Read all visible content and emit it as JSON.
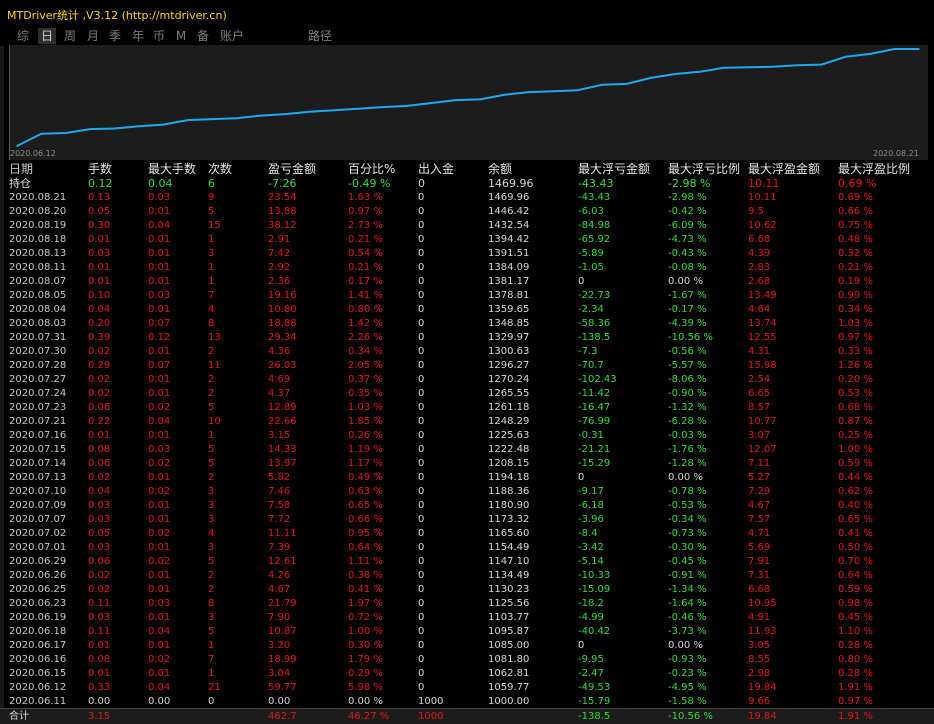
{
  "window_title": "MTDriver统计 ,V3.12 (http://mtdriver.cn)",
  "tabs": [
    "综",
    "日",
    "周",
    "月",
    "季",
    "年",
    "币",
    "M",
    "备",
    "账户",
    "路径"
  ],
  "active_tab": "日",
  "chart_data": {
    "type": "line",
    "title": "",
    "xlabel": "",
    "ylabel": "",
    "x_start_label": "2020.06.12",
    "x_end_label": "2020.08.21",
    "x": [
      "2020.06.11",
      "2020.06.12",
      "2020.06.15",
      "2020.06.16",
      "2020.06.17",
      "2020.06.18",
      "2020.06.19",
      "2020.06.23",
      "2020.06.25",
      "2020.06.26",
      "2020.06.29",
      "2020.07.01",
      "2020.07.02",
      "2020.07.07",
      "2020.07.09",
      "2020.07.10",
      "2020.07.13",
      "2020.07.14",
      "2020.07.15",
      "2020.07.16",
      "2020.07.21",
      "2020.07.23",
      "2020.07.24",
      "2020.07.27",
      "2020.07.28",
      "2020.07.30",
      "2020.07.31",
      "2020.08.03",
      "2020.08.04",
      "2020.08.05",
      "2020.08.07",
      "2020.08.11",
      "2020.08.13",
      "2020.08.18",
      "2020.08.19",
      "2020.08.20",
      "2020.08.21",
      "持仓"
    ],
    "series": [
      {
        "values": [
          1000.0,
          1059.77,
          1062.81,
          1081.8,
          1085.0,
          1095.87,
          1103.77,
          1125.56,
          1130.23,
          1134.49,
          1147.1,
          1154.49,
          1165.6,
          1173.32,
          1180.9,
          1188.36,
          1194.18,
          1208.15,
          1222.48,
          1225.63,
          1248.29,
          1261.18,
          1265.55,
          1270.24,
          1296.27,
          1300.63,
          1329.97,
          1348.85,
          1359.65,
          1378.81,
          1381.17,
          1384.09,
          1391.51,
          1394.42,
          1432.54,
          1446.42,
          1469.96,
          1469.96
        ]
      }
    ],
    "color": "#1eaaf0",
    "grid": false
  },
  "columns": [
    "日期",
    "手数",
    "最大手数",
    "次数",
    "盈亏金额",
    "百分比%",
    "出入金",
    "余额",
    "最大浮亏金额",
    "最大浮亏比例",
    "最大浮盈金额",
    "最大浮盈比例"
  ],
  "holding": [
    "持仓",
    "0.12",
    "0.04",
    "6",
    "-7.26",
    "-0.49 %",
    "0",
    "1469.96",
    "-43.43",
    "-2.98 %",
    "10.11",
    "0.69 %"
  ],
  "rows": [
    [
      "2020.08.21",
      "0.13",
      "0.03",
      "9",
      "23.54",
      "1.63 %",
      "0",
      "1469.96",
      "-43.43",
      "-2.98 %",
      "10.11",
      "0.69 %"
    ],
    [
      "2020.08.20",
      "0.05",
      "0.01",
      "5",
      "13.88",
      "0.97 %",
      "0",
      "1446.42",
      "-6.03",
      "-0.42 %",
      "9.5",
      "0.66 %"
    ],
    [
      "2020.08.19",
      "0.30",
      "0.04",
      "15",
      "38.12",
      "2.73 %",
      "0",
      "1432.54",
      "-84.98",
      "-6.09 %",
      "10.62",
      "0.75 %"
    ],
    [
      "2020.08.18",
      "0.01",
      "0.01",
      "1",
      "2.91",
      "0.21 %",
      "0",
      "1394.42",
      "-65.92",
      "-4.73 %",
      "6.68",
      "0.48 %"
    ],
    [
      "2020.08.13",
      "0.03",
      "0.01",
      "3",
      "7.42",
      "0.54 %",
      "0",
      "1391.51",
      "-5.89",
      "-0.43 %",
      "4.39",
      "0.32 %"
    ],
    [
      "2020.08.11",
      "0.01",
      "0.01",
      "1",
      "2.92",
      "0.21 %",
      "0",
      "1384.09",
      "-1.05",
      "-0.08 %",
      "2.83",
      "0.21 %"
    ],
    [
      "2020.08.07",
      "0.01",
      "0.01",
      "1",
      "2.36",
      "0.17 %",
      "0",
      "1381.17",
      "0",
      "0.00 %",
      "2.68",
      "0.19 %"
    ],
    [
      "2020.08.05",
      "0.10",
      "0.03",
      "7",
      "19.16",
      "1.41 %",
      "0",
      "1378.81",
      "-22.73",
      "-1.67 %",
      "13.49",
      "0.99 %"
    ],
    [
      "2020.08.04",
      "0.04",
      "0.01",
      "4",
      "10.80",
      "0.80 %",
      "0",
      "1359.65",
      "-2.34",
      "-0.17 %",
      "4.64",
      "0.34 %"
    ],
    [
      "2020.08.03",
      "0.20",
      "0.07",
      "8",
      "18.88",
      "1.42 %",
      "0",
      "1348.85",
      "-58.36",
      "-4.39 %",
      "13.74",
      "1.03 %"
    ],
    [
      "2020.07.31",
      "0.39",
      "0.12",
      "13",
      "29.34",
      "2.26 %",
      "0",
      "1329.97",
      "-138.5",
      "-10.56 %",
      "12.55",
      "0.97 %"
    ],
    [
      "2020.07.30",
      "0.02",
      "0.01",
      "2",
      "4.36",
      "0.34 %",
      "0",
      "1300.63",
      "-7.3",
      "-0.56 %",
      "4.31",
      "0.33 %"
    ],
    [
      "2020.07.28",
      "0.29",
      "0.07",
      "11",
      "26.03",
      "2.05 %",
      "0",
      "1296.27",
      "-70.7",
      "-5.57 %",
      "15.98",
      "1.26 %"
    ],
    [
      "2020.07.27",
      "0.02",
      "0.01",
      "2",
      "4.69",
      "0.37 %",
      "0",
      "1270.24",
      "-102.43",
      "-8.06 %",
      "2.54",
      "0.20 %"
    ],
    [
      "2020.07.24",
      "0.02",
      "0.01",
      "2",
      "4.37",
      "0.35 %",
      "0",
      "1265.55",
      "-11.42",
      "-0.90 %",
      "6.65",
      "0.53 %"
    ],
    [
      "2020.07.23",
      "0.06",
      "0.02",
      "5",
      "12.89",
      "1.03 %",
      "0",
      "1261.18",
      "-16.47",
      "-1.32 %",
      "8.57",
      "0.68 %"
    ],
    [
      "2020.07.21",
      "0.22",
      "0.04",
      "10",
      "22.66",
      "1.85 %",
      "0",
      "1248.29",
      "-76.99",
      "-6.28 %",
      "10.77",
      "0.87 %"
    ],
    [
      "2020.07.16",
      "0.01",
      "0.01",
      "1",
      "3.15",
      "0.26 %",
      "0",
      "1225.63",
      "-0.31",
      "-0.03 %",
      "3.07",
      "0.25 %"
    ],
    [
      "2020.07.15",
      "0.08",
      "0.03",
      "5",
      "14.33",
      "1.19 %",
      "0",
      "1222.48",
      "-21.21",
      "-1.76 %",
      "12.07",
      "1.00 %"
    ],
    [
      "2020.07.14",
      "0.06",
      "0.02",
      "5",
      "13.97",
      "1.17 %",
      "0",
      "1208.15",
      "-15.29",
      "-1.28 %",
      "7.11",
      "0.59 %"
    ],
    [
      "2020.07.13",
      "0.02",
      "0.01",
      "2",
      "5.82",
      "0.49 %",
      "0",
      "1194.18",
      "0",
      "0.00 %",
      "5.27",
      "0.44 %"
    ],
    [
      "2020.07.10",
      "0.04",
      "0.02",
      "3",
      "7.46",
      "0.63 %",
      "0",
      "1188.36",
      "-9.17",
      "-0.78 %",
      "7.29",
      "0.62 %"
    ],
    [
      "2020.07.09",
      "0.03",
      "0.01",
      "3",
      "7.58",
      "0.65 %",
      "0",
      "1180.90",
      "-6.18",
      "-0.53 %",
      "4.67",
      "0.40 %"
    ],
    [
      "2020.07.07",
      "0.03",
      "0.01",
      "3",
      "7.72",
      "0.66 %",
      "0",
      "1173.32",
      "-3.96",
      "-0.34 %",
      "7.57",
      "0.65 %"
    ],
    [
      "2020.07.02",
      "0.05",
      "0.02",
      "4",
      "11.11",
      "0.95 %",
      "0",
      "1165.60",
      "-8.4",
      "-0.73 %",
      "4.71",
      "0.41 %"
    ],
    [
      "2020.07.01",
      "0.03",
      "0.01",
      "3",
      "7.39",
      "0.64 %",
      "0",
      "1154.49",
      "-3.42",
      "-0.30 %",
      "5.69",
      "0.50 %"
    ],
    [
      "2020.06.29",
      "0.06",
      "0.02",
      "5",
      "12.61",
      "1.11 %",
      "0",
      "1147.10",
      "-5.14",
      "-0.45 %",
      "7.91",
      "0.70 %"
    ],
    [
      "2020.06.26",
      "0.02",
      "0.01",
      "2",
      "4.26",
      "0.38 %",
      "0",
      "1134.49",
      "-10.33",
      "-0.91 %",
      "7.31",
      "0.64 %"
    ],
    [
      "2020.06.25",
      "0.02",
      "0.01",
      "2",
      "4.67",
      "0.41 %",
      "0",
      "1130.23",
      "-15.09",
      "-1.34 %",
      "6.68",
      "0.59 %"
    ],
    [
      "2020.06.23",
      "0.11",
      "0.03",
      "8",
      "21.79",
      "1.97 %",
      "0",
      "1125.56",
      "-18.2",
      "-1.64 %",
      "10.95",
      "0.98 %"
    ],
    [
      "2020.06.19",
      "0.03",
      "0.01",
      "3",
      "7.90",
      "0.72 %",
      "0",
      "1103.77",
      "-4.99",
      "-0.46 %",
      "4.91",
      "0.45 %"
    ],
    [
      "2020.06.18",
      "0.11",
      "0.04",
      "5",
      "10.87",
      "1.00 %",
      "0",
      "1095.87",
      "-40.42",
      "-3.73 %",
      "11.93",
      "1.10 %"
    ],
    [
      "2020.06.17",
      "0.01",
      "0.01",
      "1",
      "3.20",
      "0.30 %",
      "0",
      "1085.00",
      "0",
      "0.00 %",
      "3.05",
      "0.28 %"
    ],
    [
      "2020.06.16",
      "0.08",
      "0.02",
      "7",
      "18.99",
      "1.79 %",
      "0",
      "1081.80",
      "-9.95",
      "-0.93 %",
      "8.55",
      "0.80 %"
    ],
    [
      "2020.06.15",
      "0.01",
      "0.01",
      "1",
      "3.04",
      "0.29 %",
      "0",
      "1062.81",
      "-2.47",
      "-0.23 %",
      "2.98",
      "0.28 %"
    ],
    [
      "2020.06.12",
      "0.33",
      "0.04",
      "21",
      "59.77",
      "5.98 %",
      "0",
      "1059.77",
      "-49.53",
      "-4.95 %",
      "19.84",
      "1.91 %"
    ],
    [
      "2020.06.11",
      "0.00",
      "0.00",
      "0",
      "0.00",
      "0.00 %",
      "1000",
      "1000.00",
      "-15.79",
      "-1.58 %",
      "9.66",
      "0.97 %"
    ]
  ],
  "total": [
    "合计",
    "3.15",
    "",
    "",
    "462.7",
    "46.27 %",
    "1000",
    "",
    "-138.5",
    "-10.56 %",
    "19.84",
    "1.91 %"
  ],
  "colors": {
    "title": "#ffd700",
    "loss_red": "#e01818",
    "profit_green": "#2edc3a",
    "line": "#1eaaf0",
    "background": "#000000",
    "chart_background": "#1c1c1c"
  }
}
